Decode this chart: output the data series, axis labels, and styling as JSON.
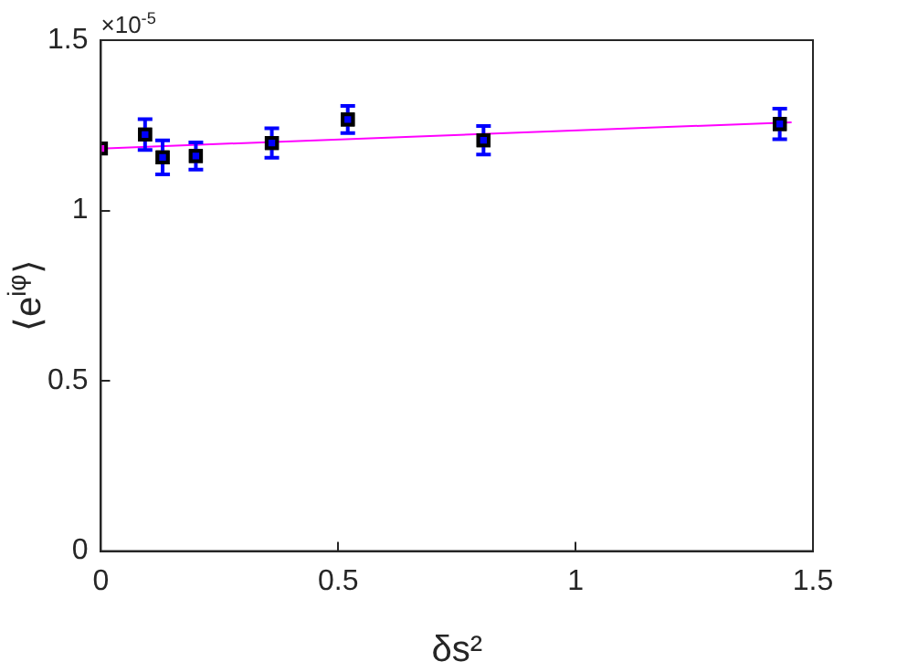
{
  "chart_data": {
    "type": "scatter",
    "xlabel": "δs²",
    "ylabel": "⟨e$^{iφ}$⟩",
    "annotations": [
      "×10$^{-5}$"
    ],
    "xlim": [
      0,
      1.5
    ],
    "xticks": [
      0,
      0.5,
      1,
      1.5
    ],
    "ylim": [
      0,
      1.5
    ],
    "yticks": [
      0,
      0.5,
      1,
      1.5
    ],
    "grid": false,
    "marker": "square",
    "series": [
      {
        "color": "#ff00ff",
        "x": [
          0
        ],
        "values": [
          1.182
        ]
      },
      {
        "color": "#0000ff",
        "x": [
          0.093,
          0.13,
          0.2,
          0.36,
          0.52,
          0.806,
          1.43
        ],
        "values": [
          1.223,
          1.156,
          1.16,
          1.198,
          1.267,
          1.206,
          1.254
        ],
        "errors": [
          0.045,
          0.05,
          0.04,
          0.043,
          0.04,
          0.042,
          0.045
        ]
      },
      {
        "type": "line",
        "color": "#ff00ff",
        "x": [
          0,
          1.455
        ],
        "values": [
          1.182,
          1.259
        ],
        "marker": "none"
      }
    ]
  }
}
